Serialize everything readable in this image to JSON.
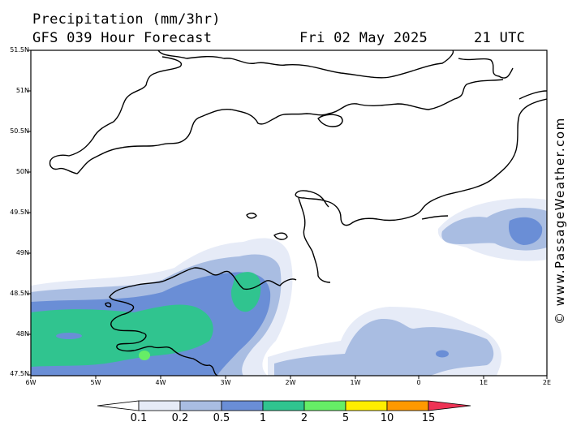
{
  "header": {
    "title": "Precipitation (mm/3hr)",
    "model": "GFS 039 Hour Forecast",
    "date": "Fri 02 May 2025",
    "time": "21 UTC"
  },
  "map": {
    "lat_labels": [
      "51.5N",
      "51N",
      "50.5N",
      "50N",
      "49.5N",
      "49N",
      "48.5N",
      "48N",
      "47.5N"
    ],
    "lon_labels": [
      "6W",
      "5W",
      "4W",
      "3W",
      "2W",
      "1W",
      "0",
      "1E",
      "2E"
    ],
    "coastline_color": "#000000",
    "precip_colors": [
      "#e6ebf7",
      "#a9bde2",
      "#6a8ed6",
      "#30c48f",
      "#66ee66",
      "#ffee00",
      "#ff9900",
      "#ee3355"
    ]
  },
  "legend": {
    "labels": [
      "0.1",
      "0.2",
      "0.5",
      "1",
      "2",
      "5",
      "10",
      "15"
    ],
    "colors": [
      "#ffffff",
      "#e6ebf7",
      "#a9bde2",
      "#6a8ed6",
      "#30c48f",
      "#66ee66",
      "#ffee00",
      "#ff9900",
      "#ee3355"
    ]
  },
  "watermark": "© www.PassageWeather.com"
}
